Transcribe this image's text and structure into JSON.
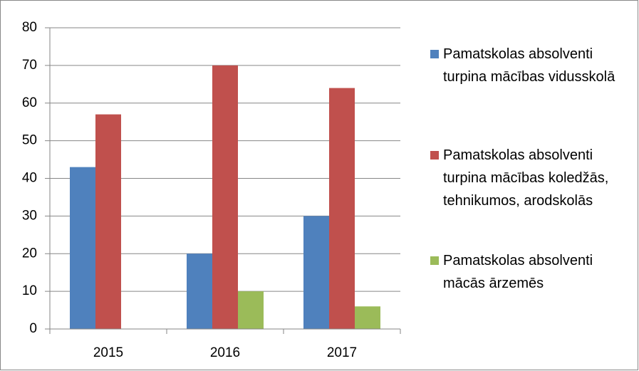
{
  "chart_data": {
    "type": "bar",
    "categories": [
      "2015",
      "2016",
      "2017"
    ],
    "series": [
      {
        "name": "Pamatskolas absolventi turpina mācības vidusskolā",
        "color": "#4f81bd",
        "values": [
          43,
          20,
          30
        ]
      },
      {
        "name": "Pamatskolas absolventi turpina mācības koledžās, tehnikumos, arodskolās",
        "color": "#c0504d",
        "values": [
          57,
          70,
          64
        ]
      },
      {
        "name": "Pamatskolas absolventi mācās ārzemēs",
        "color": "#9bbb59",
        "values": [
          0,
          10,
          6
        ]
      }
    ],
    "ylim": [
      0,
      80
    ],
    "yticks": [
      0,
      10,
      20,
      30,
      40,
      50,
      60,
      70,
      80
    ],
    "grid": true,
    "legend": "right"
  }
}
